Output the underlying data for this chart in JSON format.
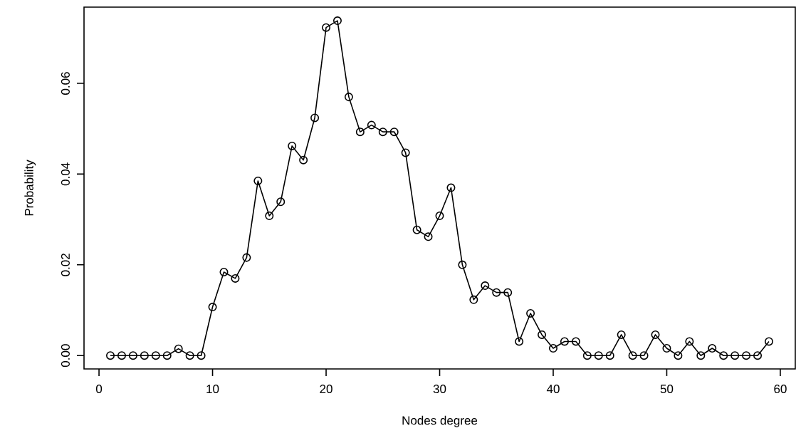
{
  "chart_data": {
    "type": "line",
    "xlabel": "Nodes degree",
    "ylabel": "Probability",
    "x": [
      1,
      2,
      3,
      4,
      5,
      6,
      7,
      8,
      9,
      10,
      11,
      12,
      13,
      14,
      15,
      16,
      17,
      18,
      19,
      20,
      21,
      22,
      23,
      24,
      25,
      26,
      27,
      28,
      29,
      30,
      31,
      32,
      33,
      34,
      35,
      36,
      37,
      38,
      39,
      40,
      41,
      42,
      43,
      44,
      45,
      46,
      47,
      48,
      49,
      50,
      51,
      52,
      53,
      54,
      55,
      56,
      57,
      58,
      59
    ],
    "series": [
      {
        "color": "#000000",
        "values": [
          0,
          0,
          0,
          0,
          0,
          0,
          0.0015,
          0,
          0,
          0.0107,
          0.0184,
          0.017,
          0.0216,
          0.0385,
          0.0308,
          0.0339,
          0.0462,
          0.0431,
          0.0524,
          0.0723,
          0.0738,
          0.057,
          0.0493,
          0.0508,
          0.0493,
          0.0493,
          0.0447,
          0.0277,
          0.0262,
          0.0308,
          0.037,
          0.02,
          0.0123,
          0.0154,
          0.0139,
          0.0139,
          0.0031,
          0.0093,
          0.0046,
          0.0016,
          0.0031,
          0.0031,
          0,
          0,
          0,
          0.0046,
          0,
          0,
          0.0046,
          0.0016,
          0,
          0.0031,
          0,
          0.0016,
          0,
          0,
          0,
          0,
          0.0031
        ]
      }
    ],
    "marker": "circle",
    "line_style": "solid",
    "xlim": [
      -1.32,
      61.32
    ],
    "ylim": [
      -0.00295,
      0.0768
    ],
    "xticks": [
      0,
      10,
      20,
      30,
      40,
      50,
      60
    ],
    "yticks": [
      {
        "value": 0,
        "label": "0.00"
      },
      0.02,
      0.04,
      0.06
    ]
  }
}
